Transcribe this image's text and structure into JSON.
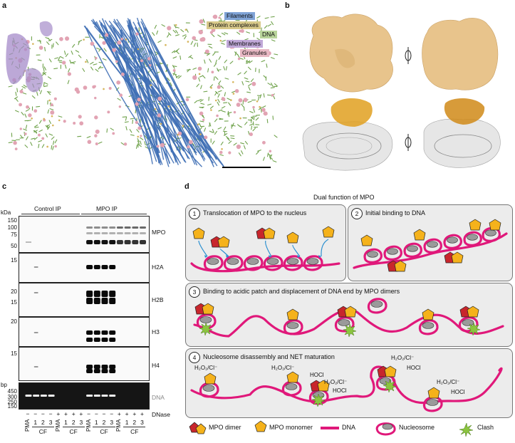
{
  "panel_labels": {
    "a": "a",
    "b": "b",
    "c": "c",
    "d": "d"
  },
  "panel_a": {
    "legend": [
      {
        "label": "Filaments",
        "color": "#7fa3d6"
      },
      {
        "label": "Protein complexes",
        "color": "#d8c98a"
      },
      {
        "label": "DNA",
        "color": "#b8d49a"
      },
      {
        "label": "Membranes",
        "color": "#c0a8d8"
      },
      {
        "label": "Granules",
        "color": "#e8b8c4"
      }
    ],
    "colors": {
      "filament": "#3f6fb5",
      "dna": "#6fa24b",
      "membrane": "#a58bc9",
      "granule": "#e2a3b3",
      "complex": "#d6b45a"
    }
  },
  "panel_b": {
    "density_color": "#e8c48c",
    "rotate_icon": "rotate-icon"
  },
  "panel_c": {
    "group_titles": {
      "control": "Control IP",
      "mpo": "MPO IP"
    },
    "kda_unit": "kDa",
    "bp_unit": "bp",
    "blots": [
      {
        "label": "MPO",
        "markers": [
          "150",
          "100",
          "75",
          "50"
        ]
      },
      {
        "label": "H2A",
        "markers": [
          "15"
        ]
      },
      {
        "label": "H2B",
        "markers": [
          "20",
          "15"
        ]
      },
      {
        "label": "H3",
        "markers": [
          "20"
        ]
      },
      {
        "label": "H4",
        "markers": [
          "15"
        ]
      },
      {
        "label": "DNA",
        "markers": [
          "450",
          "300",
          "250",
          "150"
        ]
      }
    ],
    "dnase_label": "DNase",
    "dnase_row": [
      "−",
      "−",
      "−",
      "−",
      "+",
      "+",
      "+",
      "+",
      "−",
      "−",
      "−",
      "−",
      "+",
      "+",
      "+",
      "+"
    ],
    "lanes": [
      "PMA",
      "1",
      "2",
      "3",
      "PMA",
      "1",
      "2",
      "3",
      "PMA",
      "1",
      "2",
      "3",
      "PMA",
      "1",
      "2",
      "3"
    ],
    "cf_label": "CF"
  },
  "panel_d": {
    "title": "Dual function of MPO",
    "steps": [
      {
        "num": "1",
        "title": "Translocation of MPO to the nucleus"
      },
      {
        "num": "2",
        "title": "Initial binding to DNA"
      },
      {
        "num": "3",
        "title": "Binding to acidic patch and displacement of DNA end by MPO dimers"
      },
      {
        "num": "4",
        "title": "Nucleosome disassembly and NET maturation"
      }
    ],
    "chem": {
      "h2o2": "H₂O₂/Cl⁻",
      "hocl": "HOCl"
    },
    "legend": {
      "dimer": "MPO dimer",
      "monomer": "MPO monomer",
      "dna": "DNA",
      "nucleosome": "Nucleosome",
      "clash": "Clash"
    },
    "colors": {
      "dimer": "#c8262c",
      "monomer": "#f5b21b",
      "dna": "#e0187a",
      "nucleosome": "#9a9a9a",
      "clash": "#8bc43f",
      "arrow": "#2a8fd0"
    }
  }
}
